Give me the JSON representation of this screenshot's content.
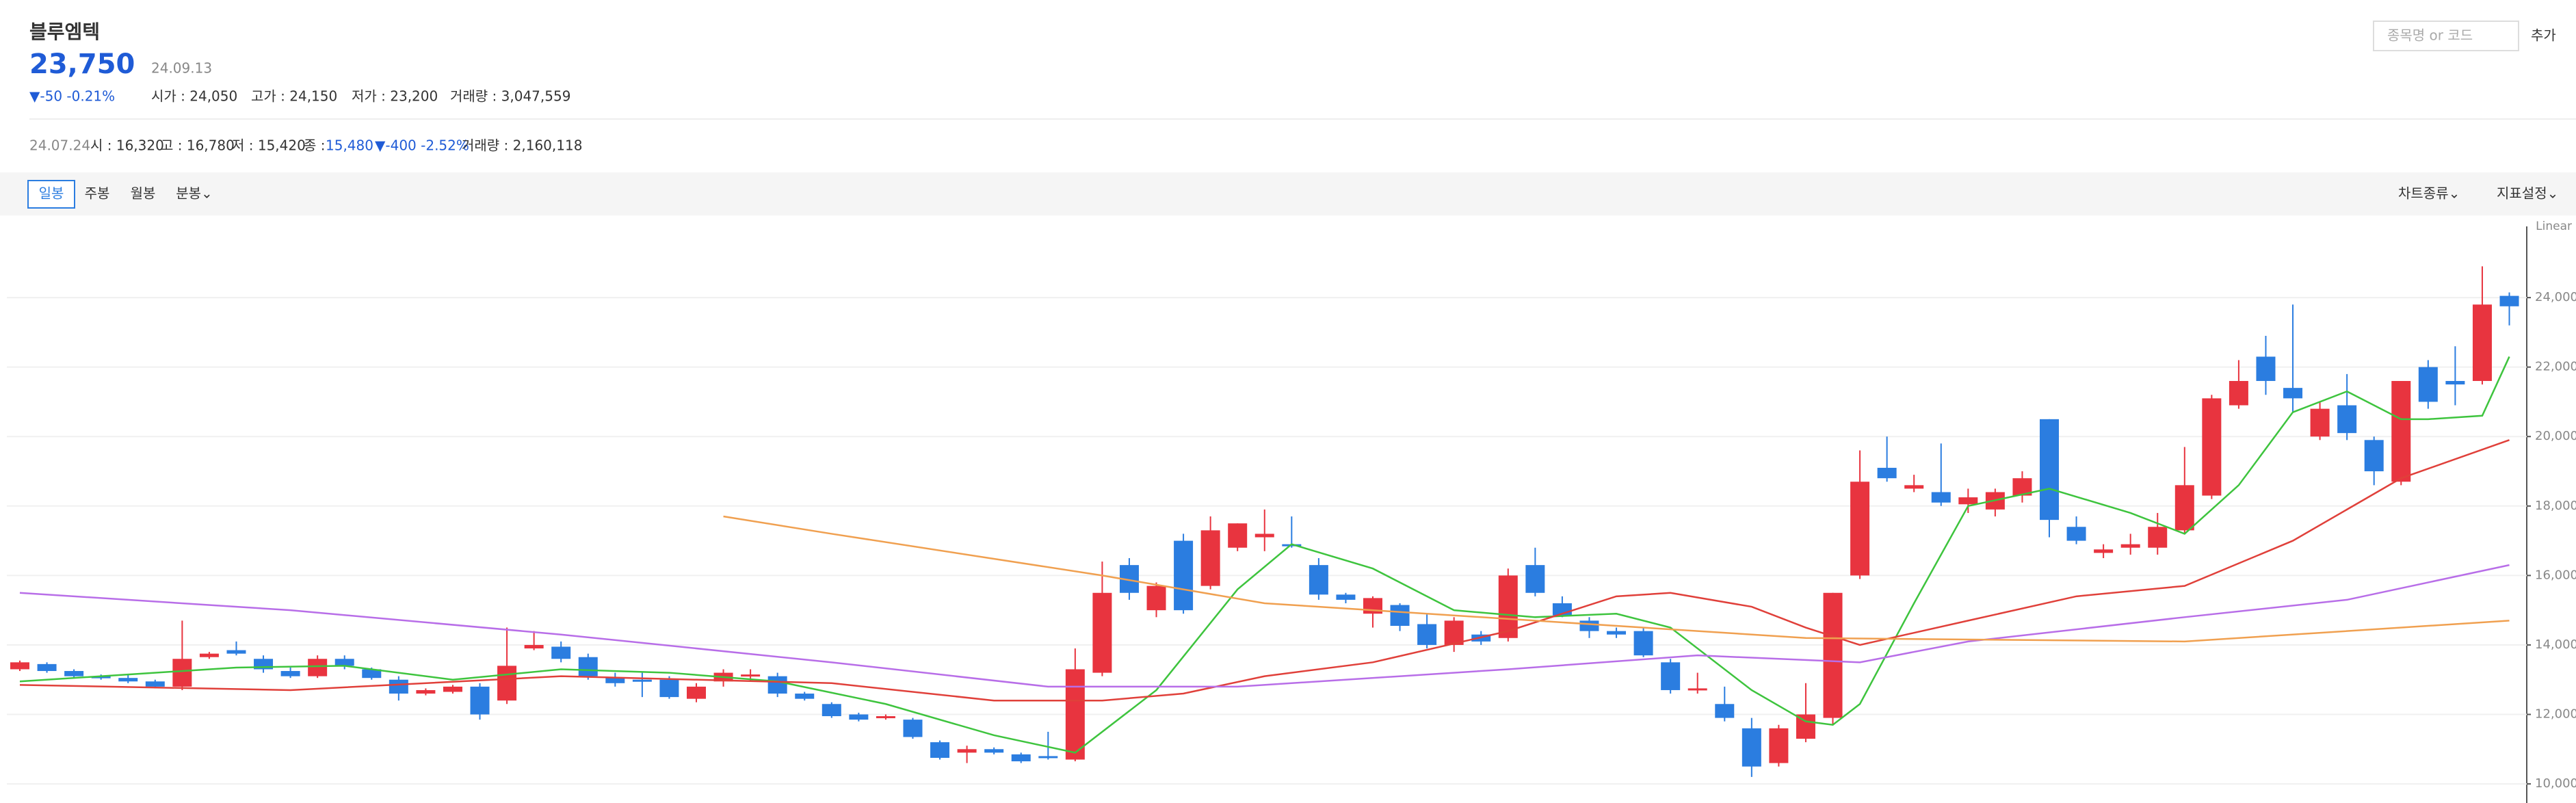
{
  "header": {
    "name": "블루엠텍",
    "price": "23,750",
    "date": "24.09.13",
    "change": "▼-50 -0.21%",
    "open": "시가 : 24,050",
    "high": "고가 : 24,150",
    "low": "저가 : 23,200",
    "volume": "거래량 : 3,047,559"
  },
  "search": {
    "placeholder": "종목명 or 코드",
    "button": "추가"
  },
  "hover": {
    "date": "24.07.24",
    "open": "시 : 16,320",
    "high": "고 : 16,780",
    "low": "저 : 15,420",
    "close_label": "종 : ",
    "close_value": "15,480",
    "change": "▼-400 -2.52%",
    "volume": "거래량 : 2,160,118"
  },
  "tabs": [
    "일봉",
    "주봉",
    "월봉",
    "분봉⌄"
  ],
  "tools": [
    "차트종류⌄",
    "지표설정⌄"
  ],
  "chart_data": {
    "type": "candlestick",
    "scale_label": "Linear",
    "up_color": "#e8343f",
    "down_color": "#2b7de0",
    "grid": true,
    "ylim": [
      9450,
      26050
    ],
    "yticks": [
      {
        "value": 10000,
        "label": "10,000"
      },
      {
        "value": 12000,
        "label": "12,000"
      },
      {
        "value": 14000,
        "label": "14,000"
      },
      {
        "value": 16000,
        "label": "16,000"
      },
      {
        "value": 18000,
        "label": "18,000"
      },
      {
        "value": 20000,
        "label": "20,000"
      },
      {
        "value": 22000,
        "label": "22,000"
      },
      {
        "value": 24000,
        "label": "24,000"
      }
    ],
    "open": [
      13300,
      13450,
      13250,
      13100,
      13050,
      12950,
      12800,
      13650,
      13850,
      13600,
      13250,
      13100,
      13600,
      13300,
      13000,
      12600,
      12650,
      12800,
      12400,
      13900,
      13950,
      13650,
      13050,
      13000,
      13000,
      12450,
      12950,
      13100,
      13100,
      12600,
      12300,
      12000,
      11900,
      11850,
      11200,
      10900,
      11000,
      10850,
      10800,
      10700,
      13200,
      16300,
      15000,
      17000,
      15700,
      16800,
      17100,
      16900,
      16300,
      15450,
      14900,
      15150,
      14600,
      14000,
      14300,
      14200,
      16300,
      15200,
      14700,
      14400,
      14400,
      13500,
      12700,
      12300,
      11600,
      10600,
      11300,
      11900,
      16000,
      19100,
      18500,
      18400,
      18050,
      17900,
      18300,
      20500,
      17400,
      16650,
      16800,
      16800,
      17300,
      18300,
      20900,
      22300,
      21400,
      20000,
      20900,
      19900,
      18700,
      22000,
      21600,
      21600,
      24050
    ],
    "close": [
      13500,
      13250,
      13100,
      13050,
      12950,
      12800,
      13600,
      13750,
      13750,
      13300,
      13100,
      13600,
      13400,
      13050,
      12600,
      12700,
      12800,
      12000,
      13400,
      14000,
      13600,
      13100,
      12900,
      12950,
      12500,
      12800,
      13200,
      13150,
      12600,
      12450,
      11950,
      11850,
      11950,
      11350,
      10750,
      11000,
      10900,
      10650,
      10750,
      13300,
      15500,
      15500,
      15700,
      15000,
      17300,
      17500,
      17200,
      16850,
      15450,
      15300,
      15350,
      14550,
      14000,
      14700,
      14100,
      16000,
      15500,
      14850,
      14400,
      14300,
      13700,
      12700,
      12750,
      11900,
      10500,
      11600,
      12000,
      15500,
      18700,
      18800,
      18600,
      18100,
      18250,
      18400,
      18800,
      17600,
      17000,
      16750,
      16900,
      17400,
      18600,
      21100,
      21600,
      21600,
      21100,
      20800,
      20100,
      19000,
      21600,
      21000,
      21500,
      23800,
      23750
    ],
    "high": [
      13550,
      13500,
      13300,
      13150,
      13150,
      13000,
      14700,
      13800,
      14100,
      13700,
      13350,
      13700,
      13700,
      13350,
      13100,
      12750,
      12850,
      12900,
      14500,
      14400,
      14100,
      13750,
      13200,
      13200,
      13100,
      12900,
      13300,
      13300,
      13200,
      12650,
      12350,
      12050,
      12000,
      11900,
      11250,
      11100,
      11050,
      10900,
      11500,
      13900,
      16400,
      16500,
      15800,
      17200,
      17700,
      17500,
      17900,
      17700,
      16500,
      15500,
      15400,
      15200,
      14900,
      14800,
      14400,
      16200,
      16800,
      15400,
      14800,
      14500,
      14500,
      13600,
      13200,
      12800,
      11900,
      11700,
      12900,
      15500,
      19600,
      20000,
      18900,
      19800,
      18500,
      18500,
      19000,
      20500,
      17700,
      16900,
      17200,
      17800,
      19700,
      21200,
      22200,
      22900,
      23800,
      21000,
      21800,
      20000,
      21600,
      22200,
      22600,
      24900,
      24150
    ],
    "low": [
      13250,
      13200,
      13050,
      13000,
      12900,
      12750,
      12700,
      13600,
      13700,
      13200,
      13050,
      13050,
      13300,
      13000,
      12400,
      12550,
      12600,
      11850,
      12300,
      13850,
      13500,
      13000,
      12800,
      12500,
      12450,
      12350,
      12800,
      12950,
      12500,
      12400,
      11900,
      11800,
      11850,
      11300,
      10700,
      10600,
      10850,
      10600,
      10700,
      10650,
      13100,
      15300,
      14800,
      14900,
      15600,
      16700,
      16700,
      16800,
      15300,
      15200,
      14500,
      14400,
      13900,
      13800,
      14000,
      14100,
      15400,
      14800,
      14200,
      14200,
      13650,
      12600,
      12600,
      11800,
      10200,
      10500,
      11200,
      11700,
      15900,
      18700,
      18400,
      18000,
      17800,
      17700,
      18100,
      17100,
      16900,
      16500,
      16600,
      16600,
      17200,
      18200,
      20800,
      21200,
      20700,
      19900,
      19900,
      18600,
      18600,
      20800,
      20900,
      21500,
      23200
    ],
    "lines": [
      {
        "color": "#3ec43e",
        "x": [
          0,
          4,
          8,
          12,
          16,
          20,
          24,
          28,
          32,
          36,
          39,
          42,
          45,
          47,
          50,
          53,
          56,
          59,
          61,
          64,
          66,
          67,
          68,
          70,
          72,
          75,
          78,
          80,
          82,
          84,
          86,
          88,
          89,
          91,
          92
        ],
        "values": [
          12950,
          13150,
          13350,
          13400,
          13000,
          13300,
          13200,
          12950,
          12300,
          11400,
          10900,
          12700,
          15600,
          16900,
          16200,
          15000,
          14800,
          14900,
          14500,
          12700,
          11800,
          11700,
          12300,
          15200,
          18000,
          18500,
          17800,
          17200,
          18600,
          20700,
          21300,
          20500,
          20500,
          20600,
          22300
        ]
      },
      {
        "color": "#e0403a",
        "x": [
          0,
          10,
          20,
          30,
          36,
          40,
          43,
          46,
          50,
          55,
          59,
          61,
          64,
          66,
          68,
          72,
          76,
          80,
          84,
          88,
          92
        ],
        "values": [
          12850,
          12700,
          13100,
          12900,
          12400,
          12400,
          12600,
          13100,
          13500,
          14400,
          15400,
          15500,
          15100,
          14500,
          14000,
          14700,
          15400,
          15700,
          17000,
          18800,
          19900
        ]
      },
      {
        "color": "#b86ee8",
        "x": [
          0,
          10,
          20,
          30,
          38,
          45,
          55,
          62,
          68,
          72,
          80,
          86,
          92
        ],
        "values": [
          15500,
          15000,
          14300,
          13500,
          12800,
          12800,
          13300,
          13700,
          13500,
          14100,
          14800,
          15300,
          16300
        ]
      },
      {
        "color": "#f0a050",
        "x": [
          26,
          30,
          40,
          46,
          56,
          66,
          80,
          92
        ],
        "values": [
          17700,
          17200,
          16000,
          15200,
          14700,
          14200,
          14100,
          14700
        ]
      }
    ]
  }
}
